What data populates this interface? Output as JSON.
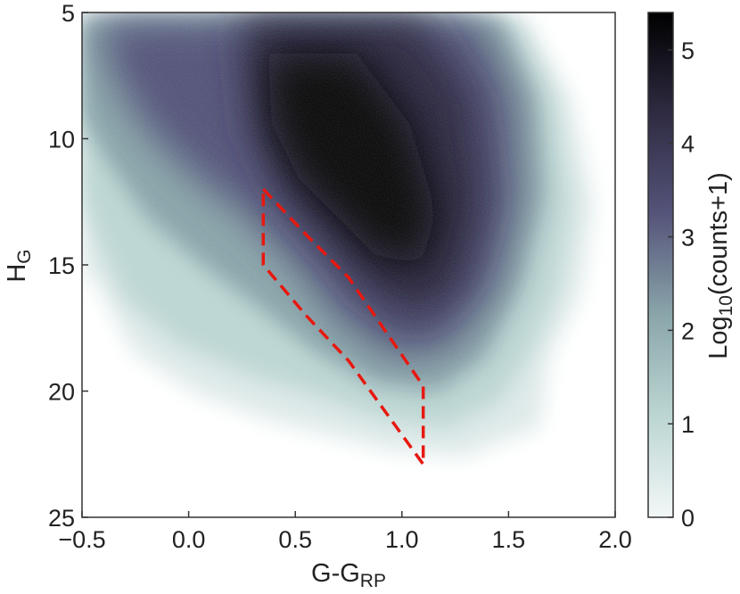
{
  "chart_data": {
    "type": "heatmap",
    "title": "",
    "xlabel": "G-G",
    "xlabel_sub": "RP",
    "ylabel": "H",
    "ylabel_sub": "G",
    "xlim": [
      -0.5,
      2.0
    ],
    "ylim": [
      25,
      5
    ],
    "x_ticks": [
      -0.5,
      0.0,
      0.5,
      1.0,
      1.5,
      2.0
    ],
    "x_tick_labels": [
      "−0.5",
      "0.0",
      "0.5",
      "1.0",
      "1.5",
      "2.0"
    ],
    "y_ticks": [
      5,
      10,
      15,
      20,
      25
    ],
    "y_tick_labels": [
      "5",
      "10",
      "15",
      "20",
      "25"
    ],
    "colorbar": {
      "label": "Log",
      "label_sub": "10",
      "label_suffix": "(counts+1)",
      "range": [
        0,
        5.4
      ],
      "ticks": [
        0,
        1,
        2,
        3,
        4,
        5
      ],
      "tick_labels": [
        "0",
        "1",
        "2",
        "3",
        "4",
        "5"
      ],
      "colors": [
        "#f2f7f7",
        "#bcd6d3",
        "#8aa6aa",
        "#55547a",
        "#2f2b42",
        "#000000"
      ]
    },
    "selection_polygon": {
      "color": "#e8180f",
      "style": "dashed",
      "vertices": [
        [
          0.35,
          12.0
        ],
        [
          0.55,
          13.8
        ],
        [
          0.75,
          15.5
        ],
        [
          1.1,
          19.8
        ],
        [
          1.1,
          22.9
        ],
        [
          0.75,
          18.8
        ],
        [
          0.55,
          17.0
        ],
        [
          0.35,
          15.0
        ]
      ]
    },
    "grid": false
  }
}
